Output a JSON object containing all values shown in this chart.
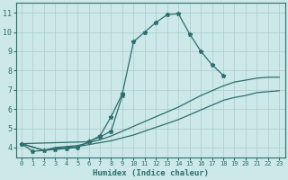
{
  "xlabel": "Humidex (Indice chaleur)",
  "bg_color": "#cce8e8",
  "line_color": "#2d6e6e",
  "grid_color": "#aacccc",
  "xlim": [
    -0.5,
    23.5
  ],
  "ylim": [
    3.5,
    11.5
  ],
  "xticks": [
    0,
    1,
    2,
    3,
    4,
    5,
    6,
    7,
    8,
    9,
    10,
    11,
    12,
    13,
    14,
    15,
    16,
    17,
    18,
    19,
    20,
    21,
    22,
    23
  ],
  "yticks": [
    4,
    5,
    6,
    7,
    8,
    9,
    10,
    11
  ],
  "line_main": {
    "x": [
      0,
      1,
      2,
      3,
      4,
      5,
      6,
      7,
      8,
      9,
      10,
      11,
      12,
      13,
      14,
      15,
      16,
      17,
      18
    ],
    "y": [
      4.2,
      3.8,
      3.85,
      3.9,
      3.95,
      4.0,
      4.3,
      4.6,
      5.6,
      6.8,
      9.5,
      10.0,
      10.5,
      10.9,
      10.95,
      9.9,
      9.0,
      8.3,
      7.75
    ]
  },
  "line_bump": {
    "x": [
      0,
      6,
      7,
      8,
      9
    ],
    "y": [
      4.2,
      4.3,
      4.55,
      4.85,
      6.7
    ]
  },
  "line_low1": {
    "x": [
      0,
      2,
      3,
      4,
      5,
      6,
      7,
      8,
      9,
      10,
      11,
      12,
      13,
      14,
      15,
      16,
      17,
      18,
      19,
      20,
      21,
      22,
      23
    ],
    "y": [
      4.2,
      3.85,
      3.95,
      4.0,
      4.05,
      4.15,
      4.25,
      4.35,
      4.5,
      4.65,
      4.85,
      5.05,
      5.25,
      5.45,
      5.7,
      5.95,
      6.2,
      6.45,
      6.6,
      6.7,
      6.85,
      6.9,
      6.95
    ]
  },
  "line_low2": {
    "x": [
      0,
      2,
      3,
      4,
      5,
      6,
      7,
      8,
      9,
      10,
      11,
      12,
      13,
      14,
      15,
      16,
      17,
      18,
      19,
      20,
      21,
      22,
      23
    ],
    "y": [
      4.2,
      3.85,
      4.0,
      4.05,
      4.1,
      4.25,
      4.4,
      4.6,
      4.85,
      5.1,
      5.35,
      5.6,
      5.85,
      6.1,
      6.4,
      6.7,
      6.95,
      7.2,
      7.4,
      7.5,
      7.6,
      7.65,
      7.65
    ]
  }
}
